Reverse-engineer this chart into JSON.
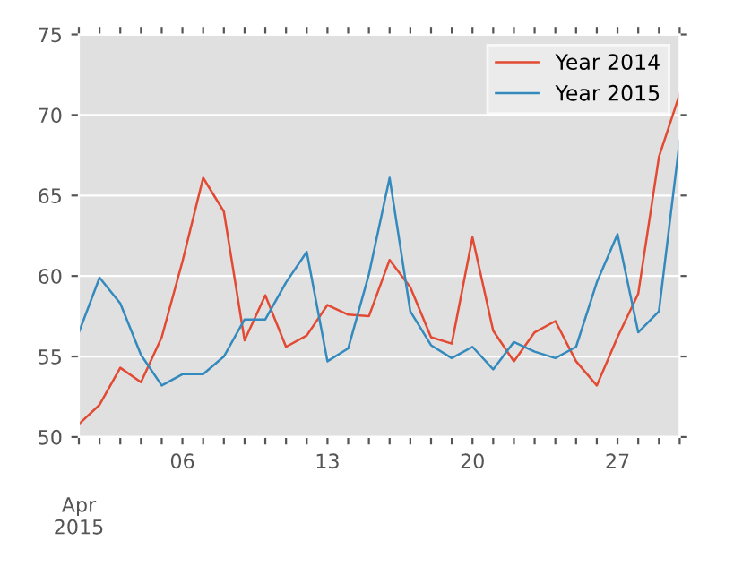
{
  "chart_data": {
    "type": "line",
    "x": [
      "2015-04-01",
      "2015-04-02",
      "2015-04-03",
      "2015-04-04",
      "2015-04-05",
      "2015-04-06",
      "2015-04-07",
      "2015-04-08",
      "2015-04-09",
      "2015-04-10",
      "2015-04-11",
      "2015-04-12",
      "2015-04-13",
      "2015-04-14",
      "2015-04-15",
      "2015-04-16",
      "2015-04-17",
      "2015-04-18",
      "2015-04-19",
      "2015-04-20",
      "2015-04-21",
      "2015-04-22",
      "2015-04-23",
      "2015-04-24",
      "2015-04-25",
      "2015-04-26",
      "2015-04-27",
      "2015-04-28",
      "2015-04-29",
      "2015-04-30"
    ],
    "series": [
      {
        "name": "Year 2014",
        "color": "#e24a33",
        "values": [
          50.8,
          52.0,
          54.3,
          53.4,
          56.2,
          60.9,
          66.1,
          64.0,
          56.0,
          58.8,
          55.6,
          56.3,
          58.2,
          57.6,
          57.5,
          61.0,
          59.3,
          56.2,
          55.8,
          62.4,
          56.6,
          54.7,
          56.5,
          57.2,
          54.7,
          53.2,
          56.2,
          58.9,
          67.4,
          71.3
        ]
      },
      {
        "name": "Year 2015",
        "color": "#348abd",
        "values": [
          56.5,
          59.9,
          58.3,
          55.1,
          53.2,
          53.9,
          53.9,
          55.0,
          57.3,
          57.3,
          59.6,
          61.5,
          54.7,
          55.5,
          60.1,
          66.1,
          57.8,
          55.7,
          54.9,
          55.6,
          54.2,
          55.9,
          55.3,
          54.9,
          55.6,
          59.6,
          62.6,
          56.5,
          57.8,
          68.4
        ]
      }
    ],
    "xlim": [
      "2015-04-01",
      "2015-04-30"
    ],
    "xticks": [
      {
        "value": "2015-04-01",
        "label": null
      },
      {
        "value": "2015-04-02",
        "label": null
      },
      {
        "value": "2015-04-03",
        "label": null
      },
      {
        "value": "2015-04-04",
        "label": null
      },
      {
        "value": "2015-04-05",
        "label": null
      },
      {
        "value": "2015-04-06",
        "label": "06"
      },
      {
        "value": "2015-04-07",
        "label": null
      },
      {
        "value": "2015-04-08",
        "label": null
      },
      {
        "value": "2015-04-09",
        "label": null
      },
      {
        "value": "2015-04-10",
        "label": null
      },
      {
        "value": "2015-04-11",
        "label": null
      },
      {
        "value": "2015-04-12",
        "label": null
      },
      {
        "value": "2015-04-13",
        "label": "13"
      },
      {
        "value": "2015-04-14",
        "label": null
      },
      {
        "value": "2015-04-15",
        "label": null
      },
      {
        "value": "2015-04-16",
        "label": null
      },
      {
        "value": "2015-04-17",
        "label": null
      },
      {
        "value": "2015-04-18",
        "label": null
      },
      {
        "value": "2015-04-19",
        "label": null
      },
      {
        "value": "2015-04-20",
        "label": "20"
      },
      {
        "value": "2015-04-21",
        "label": null
      },
      {
        "value": "2015-04-22",
        "label": null
      },
      {
        "value": "2015-04-23",
        "label": null
      },
      {
        "value": "2015-04-24",
        "label": null
      },
      {
        "value": "2015-04-25",
        "label": null
      },
      {
        "value": "2015-04-26",
        "label": null
      },
      {
        "value": "2015-04-27",
        "label": "27"
      },
      {
        "value": "2015-04-28",
        "label": null
      },
      {
        "value": "2015-04-29",
        "label": null
      },
      {
        "value": "2015-04-30",
        "label": null
      }
    ],
    "ylim": [
      50,
      75
    ],
    "yticks": [
      50,
      55,
      60,
      65,
      70,
      75
    ],
    "annotations": [
      "Apr\n2015"
    ],
    "grid": "y",
    "legend": "top right",
    "marker": "none",
    "line_style": "solid"
  }
}
